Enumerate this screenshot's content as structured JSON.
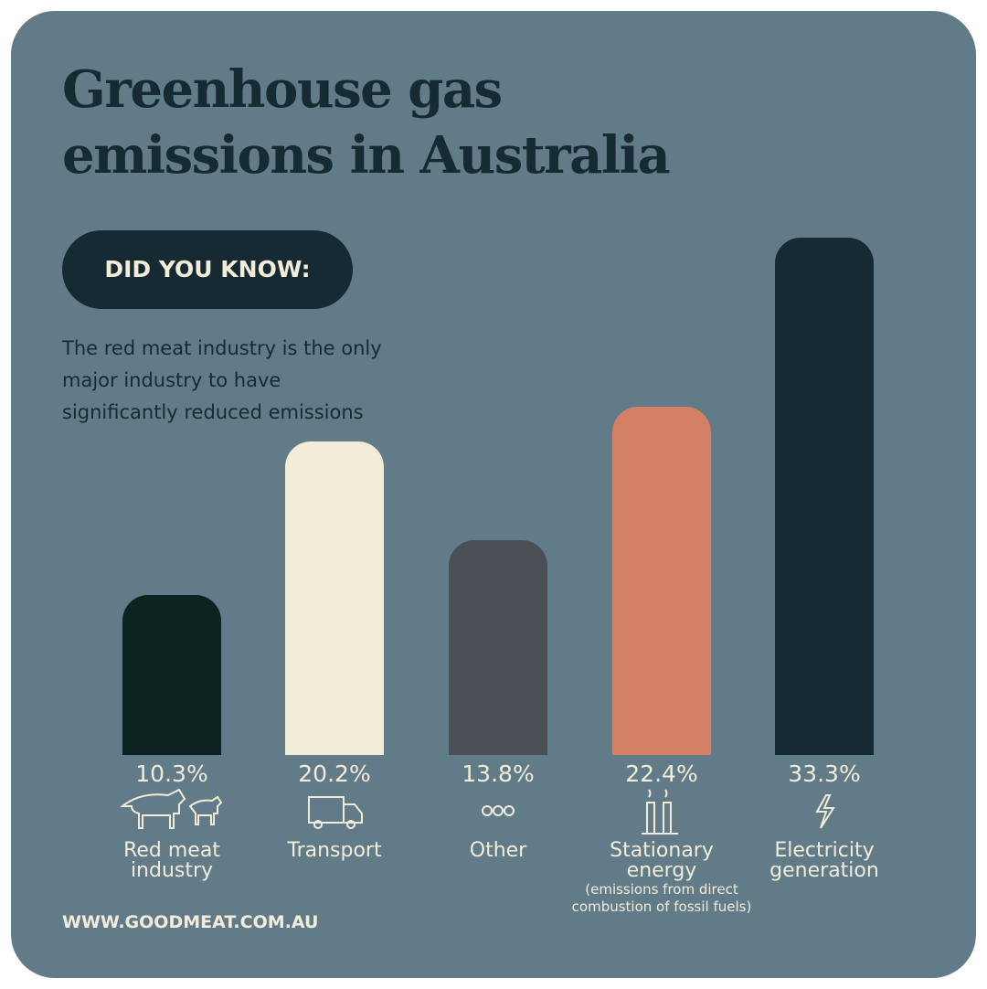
{
  "chart_data": {
    "type": "bar",
    "title": "Greenhouse gas emissions in Australia",
    "badge": "DID YOU KNOW:",
    "subtitle": "The red meat industry is the only major industry to have significantly reduced emissions",
    "footer": "WWW.GOODMEAT.COM.AU",
    "categories": [
      "Red meat industry",
      "Transport",
      "Other",
      "Stationary energy",
      "Electricity generation"
    ],
    "notes": [
      null,
      null,
      null,
      "(emissions from direct combustion of fossil fuels)",
      null
    ],
    "values": [
      10.3,
      20.2,
      13.8,
      22.4,
      33.3
    ],
    "value_labels": [
      "10.3%",
      "20.2%",
      "13.8%",
      "22.4%",
      "33.3%"
    ],
    "colors": [
      "#0c2320",
      "#f3ecd9",
      "#4a4f56",
      "#d38064",
      "#162a33"
    ]
  }
}
